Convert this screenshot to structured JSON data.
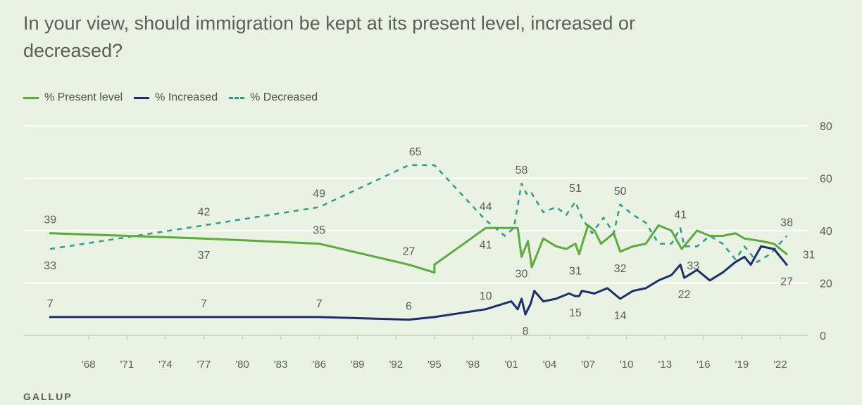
{
  "title": "In your view, should immigration be kept at its present level, increased or decreased?",
  "source": "GALLUP",
  "colors": {
    "present": "#5cab3d",
    "increased": "#1c2f6b",
    "decreased": "#2a9d8f",
    "grid": "#ffffff",
    "text": "#5a5f5a",
    "background": "#eaf2e3"
  },
  "chart_data": {
    "type": "line",
    "title": "In your view, should immigration be kept at its present level, increased or decreased?",
    "xlabel": "",
    "ylabel": "",
    "xlim": [
      1962.9,
      2024.2
    ],
    "ylim": [
      0,
      80
    ],
    "x_ticks": [
      1968,
      1971,
      1974,
      1977,
      1980,
      1983,
      1986,
      1989,
      1992,
      1995,
      1998,
      2001,
      2004,
      2007,
      2010,
      2013,
      2016,
      2019,
      2022
    ],
    "x_tick_labels": [
      "'68",
      "'71",
      "'74",
      "'77",
      "'80",
      "'83",
      "'86",
      "'89",
      "'92",
      "'95",
      "'98",
      "'01",
      "'04",
      "'07",
      "'10",
      "'13",
      "'16",
      "'19",
      "'22"
    ],
    "y_ticks": [
      0,
      20,
      40,
      60,
      80
    ],
    "y_tick_labels": [
      "0",
      "20",
      "40",
      "60",
      "80"
    ],
    "grid": true,
    "legend_position": "top-left",
    "series": [
      {
        "name": "% Present level",
        "style": "solid",
        "points": [
          [
            1965,
            39
          ],
          [
            1977,
            37
          ],
          [
            1986,
            35
          ],
          [
            1993,
            27
          ],
          [
            1995,
            24
          ],
          [
            1995,
            27
          ],
          [
            1999,
            41
          ],
          [
            2001,
            41
          ],
          [
            2001.5,
            41
          ],
          [
            2001.8,
            30
          ],
          [
            2002.3,
            36
          ],
          [
            2002.6,
            26
          ],
          [
            2003.5,
            37
          ],
          [
            2004.5,
            34
          ],
          [
            2005.3,
            33
          ],
          [
            2006,
            35
          ],
          [
            2006.3,
            31
          ],
          [
            2006.6,
            36
          ],
          [
            2007,
            42
          ],
          [
            2007.5,
            40
          ],
          [
            2008,
            35
          ],
          [
            2009,
            39
          ],
          [
            2009.5,
            32
          ],
          [
            2010.5,
            34
          ],
          [
            2011.5,
            35
          ],
          [
            2012.5,
            42
          ],
          [
            2013.5,
            40
          ],
          [
            2014.3,
            33
          ],
          [
            2015.5,
            40
          ],
          [
            2016.5,
            38
          ],
          [
            2017.5,
            38
          ],
          [
            2018.5,
            39
          ],
          [
            2019.2,
            37
          ],
          [
            2020.5,
            36
          ],
          [
            2021.5,
            35
          ],
          [
            2022.5,
            31
          ]
        ]
      },
      {
        "name": "% Increased",
        "style": "solid",
        "points": [
          [
            1965,
            7
          ],
          [
            1977,
            7
          ],
          [
            1986,
            7
          ],
          [
            1993,
            6
          ],
          [
            1995,
            7
          ],
          [
            1999,
            10
          ],
          [
            2001,
            13
          ],
          [
            2001.5,
            10
          ],
          [
            2001.8,
            14
          ],
          [
            2002.1,
            8
          ],
          [
            2002.5,
            12
          ],
          [
            2002.8,
            17
          ],
          [
            2003.5,
            13
          ],
          [
            2004.5,
            14
          ],
          [
            2005.5,
            16
          ],
          [
            2006,
            15
          ],
          [
            2006.3,
            15
          ],
          [
            2006.5,
            17
          ],
          [
            2007.5,
            16
          ],
          [
            2008.5,
            18
          ],
          [
            2009.5,
            14
          ],
          [
            2010.5,
            17
          ],
          [
            2011.5,
            18
          ],
          [
            2012.5,
            21
          ],
          [
            2013.5,
            23
          ],
          [
            2014.2,
            27
          ],
          [
            2014.5,
            22
          ],
          [
            2015.5,
            25
          ],
          [
            2016.5,
            21
          ],
          [
            2017.5,
            24
          ],
          [
            2018.5,
            28
          ],
          [
            2019.2,
            30
          ],
          [
            2019.7,
            27
          ],
          [
            2020.5,
            34
          ],
          [
            2021.5,
            33
          ],
          [
            2022.5,
            27
          ]
        ]
      },
      {
        "name": "% Decreased",
        "style": "dashed",
        "points": [
          [
            1965,
            33
          ],
          [
            1977,
            42
          ],
          [
            1986,
            49
          ],
          [
            1993,
            65
          ],
          [
            1995,
            65
          ],
          [
            1999,
            44
          ],
          [
            2000.5,
            38
          ],
          [
            2001.2,
            41
          ],
          [
            2001.8,
            58
          ],
          [
            2002.2,
            54
          ],
          [
            2002.5,
            55
          ],
          [
            2003.5,
            47
          ],
          [
            2004.5,
            49
          ],
          [
            2005.3,
            46
          ],
          [
            2006,
            51
          ],
          [
            2006.5,
            45
          ],
          [
            2007.3,
            39
          ],
          [
            2008.2,
            45
          ],
          [
            2009,
            39
          ],
          [
            2009.5,
            50
          ],
          [
            2010.5,
            46
          ],
          [
            2011.5,
            43
          ],
          [
            2012.5,
            35
          ],
          [
            2013.5,
            35
          ],
          [
            2014.2,
            41
          ],
          [
            2014.5,
            34
          ],
          [
            2015.5,
            34
          ],
          [
            2016.5,
            38
          ],
          [
            2017.5,
            35
          ],
          [
            2018.5,
            29
          ],
          [
            2019.2,
            34
          ],
          [
            2020.2,
            28
          ],
          [
            2021.2,
            31
          ],
          [
            2022.5,
            38
          ]
        ]
      }
    ],
    "data_labels": [
      {
        "x": 1965,
        "y": 39,
        "text": "39",
        "pos": "above"
      },
      {
        "x": 1977,
        "y": 42,
        "text": "42",
        "pos": "above"
      },
      {
        "x": 1986,
        "y": 49,
        "text": "49",
        "pos": "above"
      },
      {
        "x": 1993.5,
        "y": 65,
        "text": "65",
        "pos": "above"
      },
      {
        "x": 1999,
        "y": 44,
        "text": "44",
        "pos": "above"
      },
      {
        "x": 2001.8,
        "y": 58,
        "text": "58",
        "pos": "above"
      },
      {
        "x": 2006,
        "y": 51,
        "text": "51",
        "pos": "above"
      },
      {
        "x": 2009.5,
        "y": 50,
        "text": "50",
        "pos": "above"
      },
      {
        "x": 2014.2,
        "y": 41,
        "text": "41",
        "pos": "above"
      },
      {
        "x": 2022.5,
        "y": 38,
        "text": "38",
        "pos": "above"
      },
      {
        "x": 1965,
        "y": 33,
        "text": "33",
        "pos": "below"
      },
      {
        "x": 1977,
        "y": 37,
        "text": "37",
        "pos": "below"
      },
      {
        "x": 1986,
        "y": 35,
        "text": "35",
        "pos": "above"
      },
      {
        "x": 1993,
        "y": 27,
        "text": "27",
        "pos": "above"
      },
      {
        "x": 1999,
        "y": 41,
        "text": "41",
        "pos": "below"
      },
      {
        "x": 2001.8,
        "y": 30,
        "text": "30",
        "pos": "below"
      },
      {
        "x": 2006,
        "y": 31,
        "text": "31",
        "pos": "below"
      },
      {
        "x": 2009.5,
        "y": 32,
        "text": "32",
        "pos": "below"
      },
      {
        "x": 2015.2,
        "y": 33,
        "text": "33",
        "pos": "below"
      },
      {
        "x": 2023.3,
        "y": 31,
        "text": "31",
        "pos": "right"
      },
      {
        "x": 1965,
        "y": 7,
        "text": "7",
        "pos": "above"
      },
      {
        "x": 1977,
        "y": 7,
        "text": "7",
        "pos": "above"
      },
      {
        "x": 1986,
        "y": 7,
        "text": "7",
        "pos": "above"
      },
      {
        "x": 1993,
        "y": 6,
        "text": "6",
        "pos": "above"
      },
      {
        "x": 1999,
        "y": 10,
        "text": "10",
        "pos": "above"
      },
      {
        "x": 2002.1,
        "y": 8,
        "text": "8",
        "pos": "below"
      },
      {
        "x": 2006,
        "y": 15,
        "text": "15",
        "pos": "below"
      },
      {
        "x": 2009.5,
        "y": 14,
        "text": "14",
        "pos": "below"
      },
      {
        "x": 2014.5,
        "y": 22,
        "text": "22",
        "pos": "below"
      },
      {
        "x": 2022.5,
        "y": 27,
        "text": "27",
        "pos": "below"
      }
    ]
  }
}
